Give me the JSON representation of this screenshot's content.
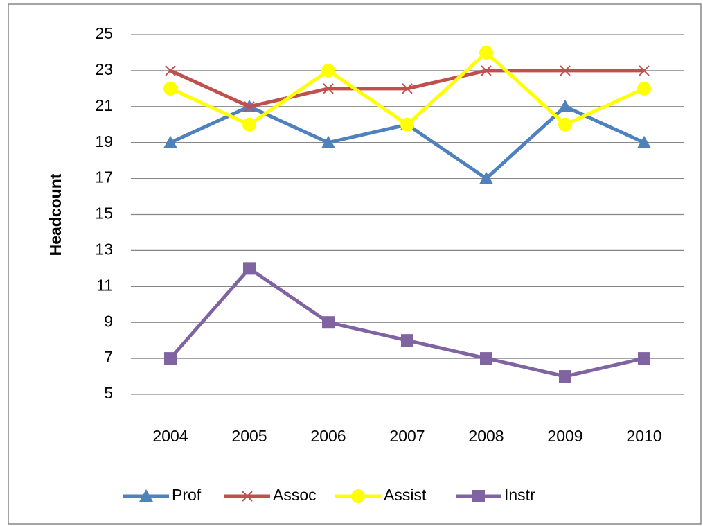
{
  "chart_data": {
    "type": "line",
    "y_label": "Headcount",
    "categories": [
      "2004",
      "2005",
      "2006",
      "2007",
      "2008",
      "2009",
      "2010"
    ],
    "series": [
      {
        "name": "Prof",
        "color": "#4f81bd",
        "marker": "triangle",
        "values": [
          19,
          21,
          19,
          20,
          17,
          21,
          19
        ]
      },
      {
        "name": "Assoc",
        "color": "#c0504d",
        "marker": "x",
        "values": [
          23,
          21,
          22,
          22,
          23,
          23,
          23
        ]
      },
      {
        "name": "Assist",
        "color": "#ffff00",
        "marker": "circle",
        "values": [
          22,
          20,
          23,
          20,
          24,
          20,
          22
        ]
      },
      {
        "name": "Instr",
        "color": "#8064a2",
        "marker": "square",
        "values": [
          7,
          12,
          9,
          8,
          7,
          6,
          7
        ]
      }
    ],
    "ylim": [
      5,
      25
    ],
    "yticks": [
      5,
      7,
      9,
      11,
      13,
      15,
      17,
      19,
      21,
      23,
      25
    ],
    "grid": true,
    "legend": "bottom"
  }
}
